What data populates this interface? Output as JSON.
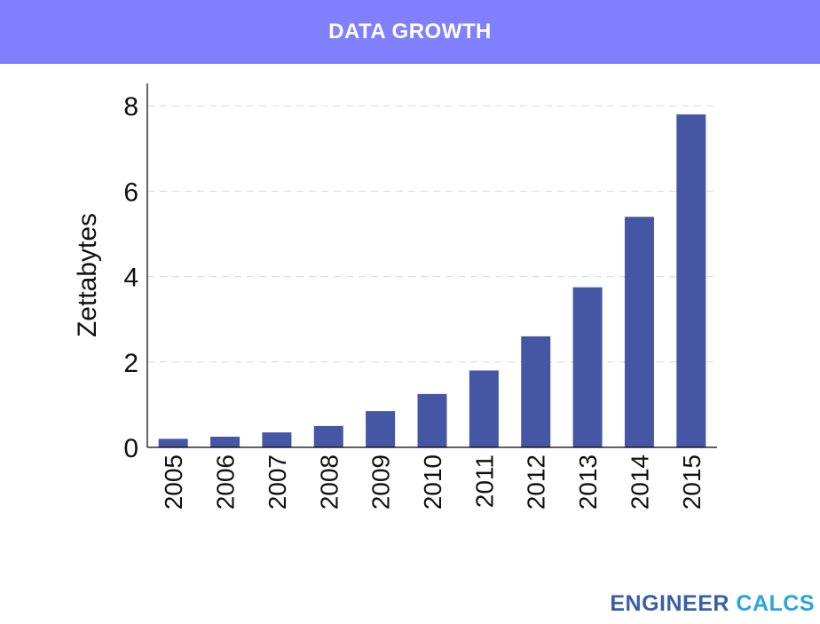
{
  "header": {
    "title": "DATA GROWTH"
  },
  "brand": {
    "word1": "ENGINEER",
    "word2": "CALCS"
  },
  "colors": {
    "header_bg": "#8080ff",
    "bar": "#4556a4",
    "brand_primary": "#3a5fa8",
    "brand_accent": "#2aa6de"
  },
  "chart_data": {
    "type": "bar",
    "categories": [
      "2005",
      "2006",
      "2007",
      "2008",
      "2009",
      "2010",
      "2011",
      "2012",
      "2013",
      "2014",
      "2015"
    ],
    "values": [
      0.2,
      0.25,
      0.35,
      0.5,
      0.85,
      1.25,
      1.8,
      2.6,
      3.75,
      5.4,
      7.8
    ],
    "title": "",
    "xlabel": "",
    "ylabel": "Zettabytes",
    "ylim": [
      0,
      8.4
    ],
    "yticks": [
      0,
      2,
      4,
      6,
      8
    ],
    "grid": true,
    "grid_style": "dashed"
  }
}
